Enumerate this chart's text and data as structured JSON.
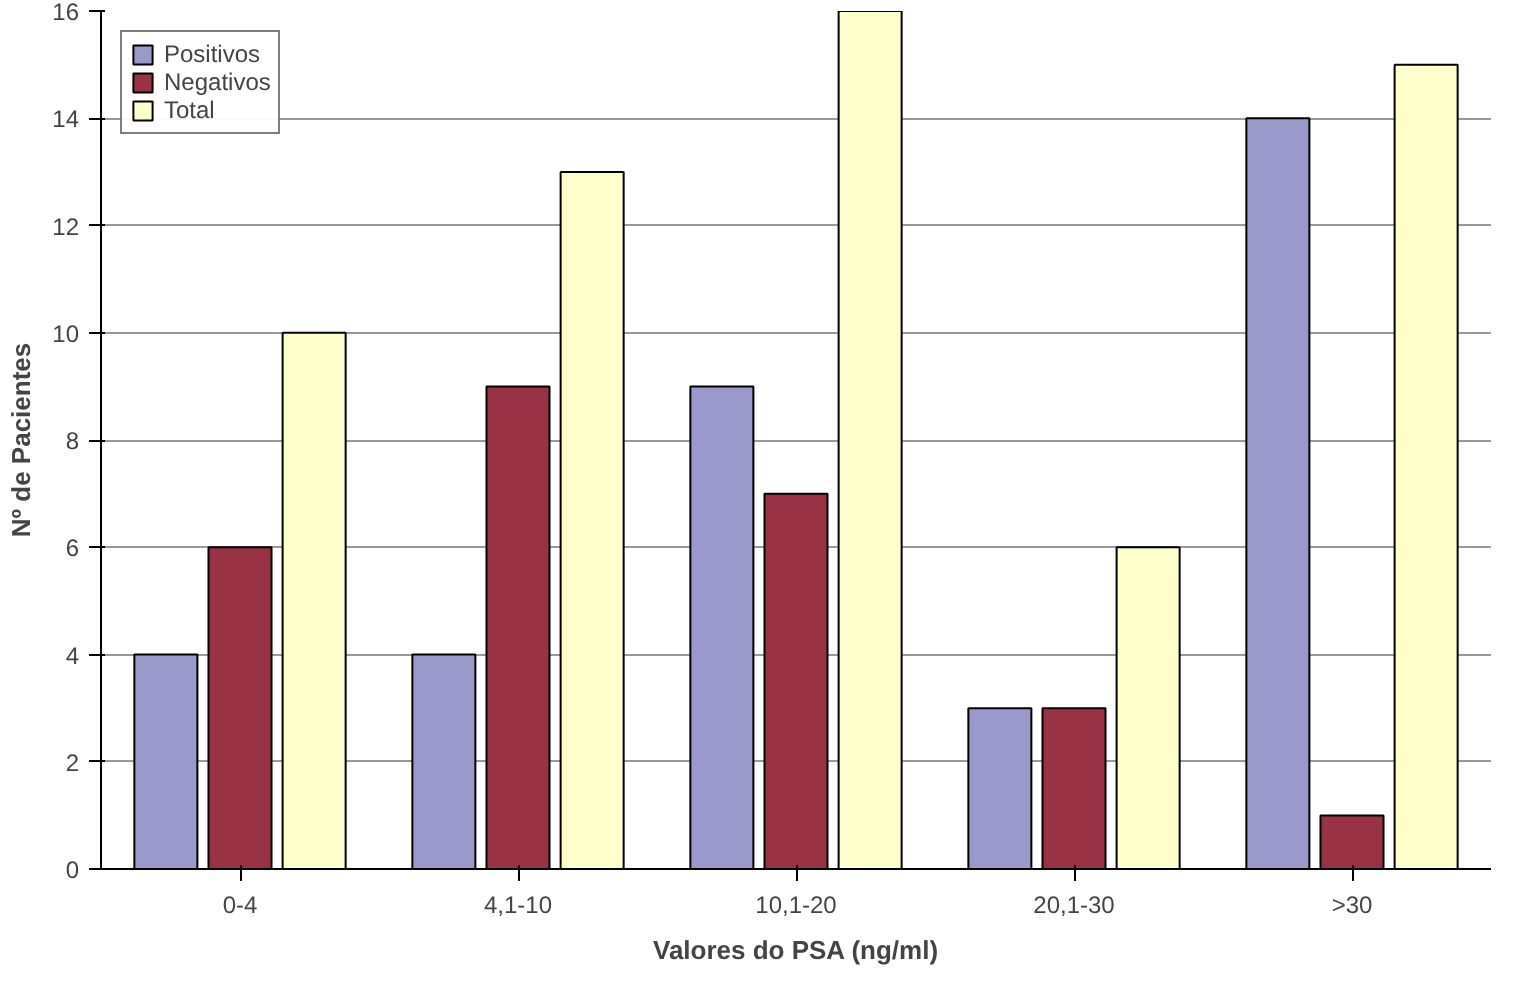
{
  "chart_data": {
    "type": "bar",
    "xlabel": "Valores do PSA (ng/ml)",
    "ylabel": "Nº de Pacientes",
    "categories": [
      "0-4",
      "4,1-10",
      "10,1-20",
      "20,1-30",
      ">30"
    ],
    "series": [
      {
        "name": "Positivos",
        "color": "#9999cc",
        "values": [
          4,
          4,
          9,
          3,
          14
        ]
      },
      {
        "name": "Negativos",
        "color": "#993344",
        "values": [
          6,
          9,
          7,
          3,
          1
        ]
      },
      {
        "name": "Total",
        "color": "#ffffcc",
        "values": [
          10,
          13,
          16,
          6,
          15
        ]
      }
    ],
    "ylim": [
      0,
      16
    ],
    "yticks": [
      0,
      2,
      4,
      6,
      8,
      10,
      12,
      14,
      16
    ],
    "grid": "y",
    "legend": "top left"
  }
}
